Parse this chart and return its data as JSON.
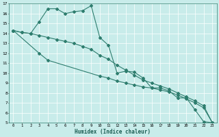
{
  "xlabel": "Humidex (Indice chaleur)",
  "bg_color": "#c8ecea",
  "grid_color": "#ffffff",
  "line_color": "#2e7d6e",
  "xlim": [
    -0.5,
    23.5
  ],
  "ylim": [
    5,
    17
  ],
  "xticks": [
    0,
    1,
    2,
    3,
    4,
    5,
    6,
    7,
    8,
    9,
    10,
    11,
    12,
    13,
    14,
    15,
    16,
    17,
    18,
    19,
    20,
    21,
    22,
    23
  ],
  "yticks": [
    5,
    6,
    7,
    8,
    9,
    10,
    11,
    12,
    13,
    14,
    15,
    16,
    17
  ],
  "series1_x": [
    0,
    1,
    2,
    3,
    4,
    5,
    6,
    7,
    8,
    9,
    10,
    11,
    12,
    13,
    14,
    15,
    16,
    17,
    18,
    19,
    20,
    21,
    22,
    23
  ],
  "series1_y": [
    14.3,
    14.1,
    14.0,
    15.2,
    16.5,
    16.5,
    16.0,
    16.2,
    16.3,
    16.8,
    13.6,
    12.8,
    10.0,
    10.2,
    10.1,
    9.5,
    8.5,
    8.5,
    8.2,
    7.5,
    7.5,
    6.3,
    5.1,
    5.0
  ],
  "series2_x": [
    0,
    1,
    2,
    3,
    4,
    5,
    6,
    7,
    8,
    9,
    10,
    11,
    12,
    13,
    14,
    15,
    16,
    17,
    18,
    19,
    20,
    21,
    22,
    23
  ],
  "series2_y": [
    14.3,
    14.1,
    14.0,
    13.8,
    13.6,
    13.4,
    13.2,
    13.0,
    12.7,
    12.4,
    11.8,
    11.4,
    10.8,
    10.3,
    9.8,
    9.3,
    9.0,
    8.7,
    8.4,
    8.0,
    7.6,
    7.2,
    6.7,
    5.0
  ],
  "series3_x": [
    0,
    3,
    4,
    10,
    11,
    12,
    13,
    14,
    15,
    16,
    17,
    18,
    19,
    20,
    21,
    22,
    23
  ],
  "series3_y": [
    14.3,
    12.0,
    11.3,
    9.7,
    9.5,
    9.2,
    9.0,
    8.8,
    8.6,
    8.5,
    8.3,
    8.1,
    7.8,
    7.4,
    7.0,
    6.5,
    5.0
  ]
}
